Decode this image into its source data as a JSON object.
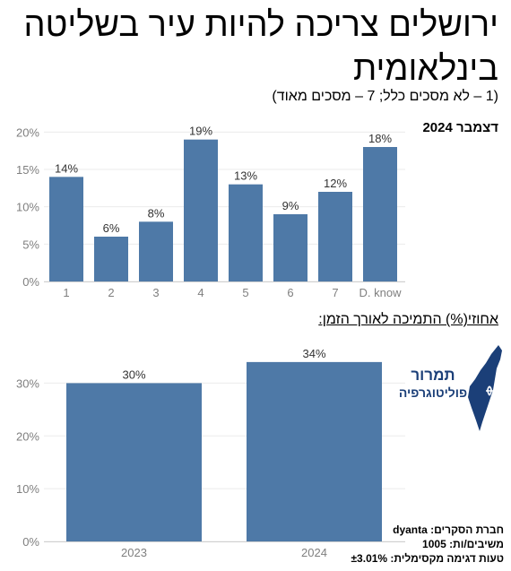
{
  "header": {
    "title": "ירושלים צריכה להיות עיר בשליטה בינלאומית",
    "subtitle": "(1 – לא מסכים כלל; 7 – מסכים מאוד)"
  },
  "chart1_label": "דצמבר 2024",
  "chart2_label": "אחוזי(%) התמיכה לאורך הזמן:",
  "logo": {
    "line1": "תמרור",
    "line2": "פוליטוגרפיה",
    "color": "#1b3f78",
    "icon": "israel-map-icon"
  },
  "credits": {
    "company": "חברת הסקרים: dyanta",
    "respondents": "משיבים/ות: 1005",
    "margin": "טעות דגימה מקסימלית: ±3.01%"
  },
  "colors": {
    "bar": "#4e79a7",
    "grid": "#ebebeb",
    "axis": "#7f7f7f"
  },
  "chart_data": [
    {
      "type": "bar",
      "categories": [
        "1",
        "2",
        "3",
        "4",
        "5",
        "6",
        "7",
        "D. know"
      ],
      "values": [
        14,
        6,
        8,
        19,
        13,
        9,
        12,
        18
      ],
      "value_labels": [
        "14%",
        "6%",
        "8%",
        "19%",
        "13%",
        "9%",
        "12%",
        "18%"
      ],
      "y_ticks": [
        "0%",
        "5%",
        "10%",
        "15%",
        "20%"
      ],
      "y_tick_values": [
        0,
        5,
        10,
        15,
        20
      ],
      "ylim": [
        0,
        21
      ],
      "grid": true
    },
    {
      "type": "bar",
      "categories": [
        "2023",
        "2024"
      ],
      "values": [
        30,
        34
      ],
      "value_labels": [
        "30%",
        "34%"
      ],
      "y_ticks": [
        "0%",
        "10%",
        "20%",
        "30%"
      ],
      "y_tick_values": [
        0,
        10,
        20,
        30
      ],
      "ylim": [
        0,
        35
      ],
      "grid": true
    }
  ]
}
